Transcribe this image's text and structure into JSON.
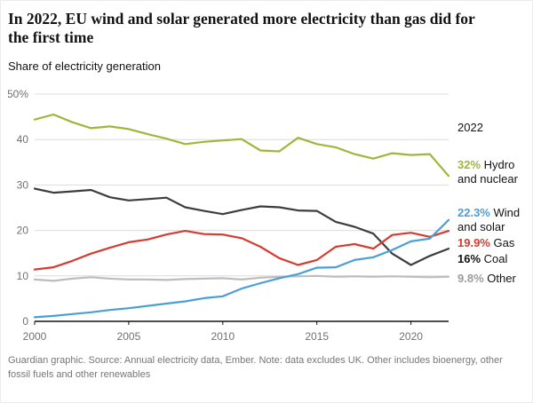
{
  "header": {
    "title": "In 2022, EU wind and solar generated more electricity than gas did for the first time",
    "subtitle": "Share of electricity generation"
  },
  "annotations": {
    "year": "2022"
  },
  "chart_data": {
    "type": "line",
    "title": "In 2022, EU wind and solar generated more electricity than gas did for the first time",
    "subtitle": "Share of electricity generation",
    "x": [
      2000,
      2001,
      2002,
      2003,
      2004,
      2005,
      2006,
      2007,
      2008,
      2009,
      2010,
      2011,
      2012,
      2013,
      2014,
      2015,
      2016,
      2017,
      2018,
      2019,
      2020,
      2021,
      2022
    ],
    "xticks": [
      2000,
      2005,
      2010,
      2015,
      2020
    ],
    "ylim": [
      0,
      50
    ],
    "yticks": [
      0,
      10,
      20,
      30,
      40,
      50
    ],
    "ytick_labels": [
      "0",
      "10",
      "20",
      "30",
      "40",
      "50%"
    ],
    "grid": "horizontal",
    "legend_position": "right-annotations",
    "unit": "% share of electricity generation",
    "series": [
      {
        "name": "Hydro and nuclear",
        "end_label": "32%",
        "color": "#a2b53b",
        "values": [
          44.4,
          45.5,
          43.8,
          42.5,
          42.9,
          42.3,
          41.2,
          40.2,
          39.0,
          39.5,
          39.8,
          40.1,
          37.6,
          37.4,
          40.4,
          39.0,
          38.3,
          36.8,
          35.8,
          37.0,
          36.6,
          36.8,
          32.0
        ]
      },
      {
        "name": "Wind and solar",
        "end_label": "22.3%",
        "color": "#4a9fd6",
        "values": [
          0.9,
          1.2,
          1.6,
          2.0,
          2.5,
          2.9,
          3.4,
          3.9,
          4.4,
          5.1,
          5.5,
          7.2,
          8.4,
          9.5,
          10.4,
          11.8,
          11.9,
          13.5,
          14.1,
          15.7,
          17.6,
          18.2,
          22.3
        ]
      },
      {
        "name": "Gas",
        "end_label": "19.9%",
        "color": "#d63b2f",
        "values": [
          11.4,
          11.9,
          13.3,
          14.9,
          16.2,
          17.4,
          18.0,
          19.1,
          19.9,
          19.2,
          19.1,
          18.3,
          16.4,
          13.9,
          12.4,
          13.5,
          16.4,
          17.0,
          16.0,
          19.0,
          19.5,
          18.6,
          19.9
        ]
      },
      {
        "name": "Coal",
        "end_label": "16%",
        "color": "#3d3d3d",
        "label_color": "#121212",
        "values": [
          29.2,
          28.3,
          28.6,
          28.9,
          27.3,
          26.6,
          26.9,
          27.2,
          25.1,
          24.3,
          23.6,
          24.5,
          25.3,
          25.1,
          24.4,
          24.3,
          21.9,
          20.8,
          19.3,
          14.9,
          12.4,
          14.4,
          16.0
        ]
      },
      {
        "name": "Other",
        "end_label": "9.8%",
        "color": "#bdbdbd",
        "label_color": "#9c9c9c",
        "values": [
          9.2,
          8.9,
          9.4,
          9.7,
          9.4,
          9.2,
          9.2,
          9.1,
          9.3,
          9.4,
          9.5,
          9.2,
          9.6,
          9.8,
          9.9,
          10.0,
          9.8,
          9.9,
          9.8,
          9.9,
          9.8,
          9.7,
          9.8
        ]
      }
    ]
  },
  "footer": {
    "note": "Guardian graphic. Source: Annual electricity data, Ember. Note: data excludes UK. Other includes bioenergy, other fossil fuels and other renewables"
  }
}
